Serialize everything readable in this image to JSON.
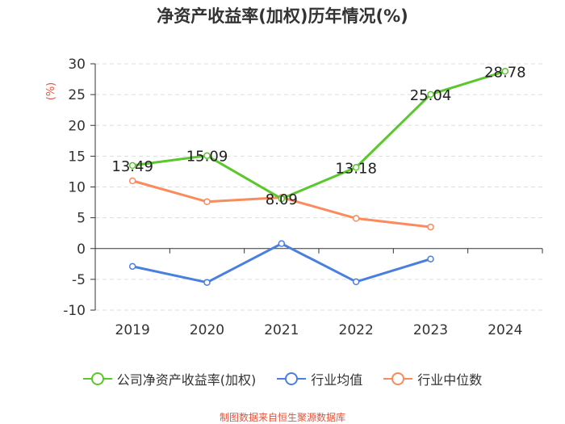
{
  "chart_data": {
    "type": "line",
    "title": "净资产收益率(加权)历年情况(%)",
    "ylabel": "(%)",
    "xlabel": "",
    "categories": [
      "2019",
      "2020",
      "2021",
      "2022",
      "2023",
      "2024"
    ],
    "ylim": [
      -10,
      30
    ],
    "yticks": [
      30,
      25,
      20,
      15,
      10,
      5,
      0,
      -5,
      -10
    ],
    "series": [
      {
        "name": "公司净资产收益率(加权)",
        "color": "#5ac82c",
        "values": [
          13.49,
          15.09,
          8.09,
          13.18,
          25.04,
          28.78
        ],
        "labels": [
          "13.49",
          "15.09",
          "8.09",
          "13.18",
          "25.04",
          "28.78"
        ]
      },
      {
        "name": "行业均值",
        "color": "#4a7fdf",
        "values": [
          -2.9,
          -5.5,
          0.8,
          -5.4,
          -1.7,
          null
        ]
      },
      {
        "name": "行业中位数",
        "color": "#f98b5c",
        "values": [
          11.0,
          7.6,
          8.3,
          4.9,
          3.5,
          null
        ]
      }
    ]
  },
  "footer": "制图数据来自恒生聚源数据库"
}
